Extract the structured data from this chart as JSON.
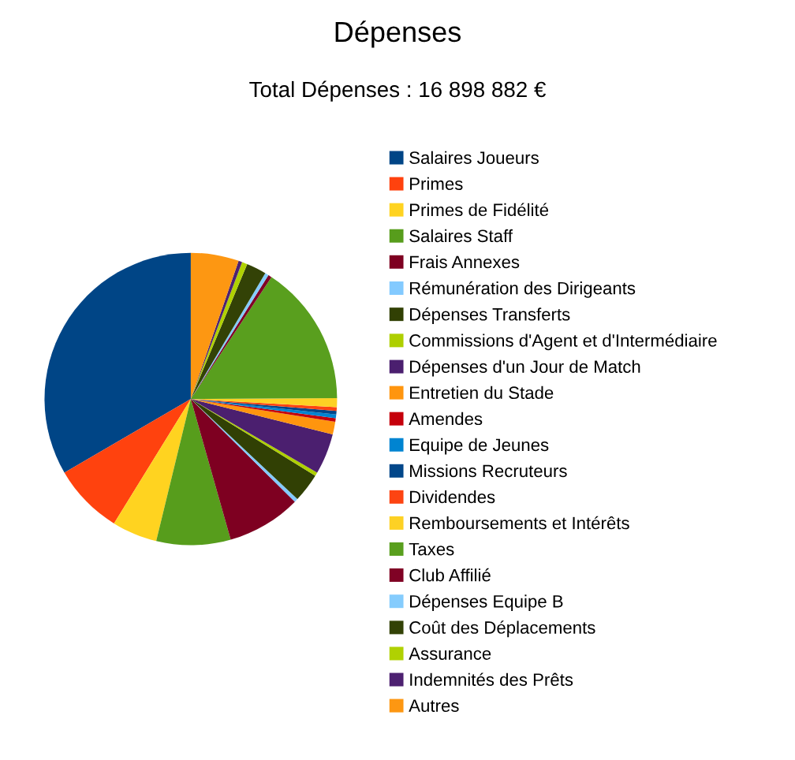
{
  "chart_data": {
    "type": "pie",
    "title": "Dépenses",
    "subtitle": "Total Dépenses : 16 898 882 €",
    "categories": [
      "Salaires Joueurs",
      "Primes",
      "Primes de Fidélité",
      "Salaires Staff",
      "Frais Annexes",
      "Rémunération des Dirigeants",
      "Dépenses Transferts",
      "Commissions d'Agent et d'Intermédiaire",
      "Dépenses d'un Jour de Match",
      "Entretien du Stade",
      "Amendes",
      "Equipe de Jeunes",
      "Missions Recruteurs",
      "Dividendes",
      "Remboursements et Intérêts",
      "Taxes",
      "Club Affilié",
      "Dépenses Equipe B",
      "Coût des Déplacements",
      "Assurance",
      "Indemnités des Prêts",
      "Autres"
    ],
    "values": [
      33.4,
      7.8,
      5,
      8.2,
      8.2,
      0.4,
      3.2,
      0.4,
      4.5,
      1.4,
      0.4,
      0.4,
      0.4,
      0.4,
      1,
      15.6,
      0.4,
      0.4,
      2.2,
      0.6,
      0.4,
      5.3
    ],
    "colors": [
      "#004586",
      "#ff420e",
      "#ffd320",
      "#579d1c",
      "#7e0021",
      "#83caff",
      "#314004",
      "#aecf00",
      "#4b1f6f",
      "#ff950e",
      "#c5000b",
      "#0084d1",
      "#02478a",
      "#fd4412",
      "#fdd124",
      "#599f1e",
      "#800225",
      "#85ccfd",
      "#334206",
      "#b0d102",
      "#4d2171",
      "#fd9712"
    ],
    "legend": "right"
  }
}
